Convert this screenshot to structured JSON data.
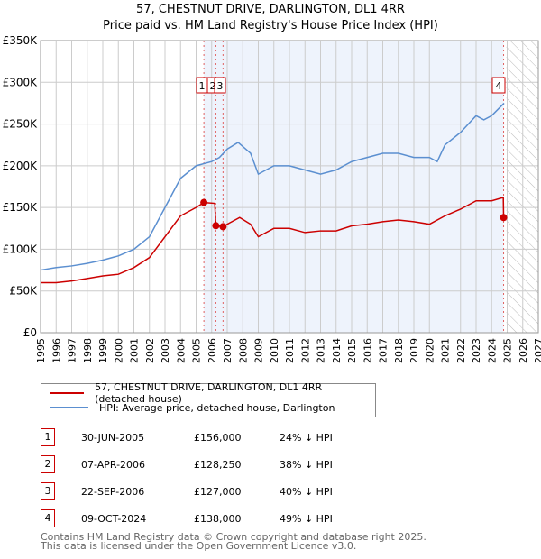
{
  "title": "57, CHESTNUT DRIVE, DARLINGTON, DL1 4RR",
  "subtitle": "Price paid vs. HM Land Registry's House Price Index (HPI)",
  "chart_data": {
    "type": "line",
    "xlim": [
      1995,
      2027
    ],
    "ylim": [
      0,
      350000
    ],
    "x_ticks": [
      "1995",
      "1996",
      "1997",
      "1998",
      "1999",
      "2000",
      "2001",
      "2002",
      "2003",
      "2004",
      "2005",
      "2006",
      "2007",
      "2008",
      "2009",
      "2010",
      "2011",
      "2012",
      "2013",
      "2014",
      "2015",
      "2016",
      "2017",
      "2018",
      "2019",
      "2020",
      "2021",
      "2022",
      "2023",
      "2024",
      "2025",
      "2026",
      "2027"
    ],
    "y_ticks": [
      {
        "v": 0,
        "label": "£0"
      },
      {
        "v": 50000,
        "label": "£50K"
      },
      {
        "v": 100000,
        "label": "£100K"
      },
      {
        "v": 150000,
        "label": "£150K"
      },
      {
        "v": 200000,
        "label": "£200K"
      },
      {
        "v": 250000,
        "label": "£250K"
      },
      {
        "v": 300000,
        "label": "£300K"
      },
      {
        "v": 350000,
        "label": "£350K"
      }
    ],
    "shaded_range": [
      2005.5,
      2024.77
    ],
    "forecast_from": 2024.95,
    "series": [
      {
        "name": "57, CHESTNUT DRIVE, DARLINGTON, DL1 4RR (detached house)",
        "color": "#cc0000",
        "x": [
          1995,
          1996,
          1997,
          1998,
          1999,
          2000,
          2001,
          2002,
          2003,
          2004,
          2005,
          2005.5,
          2006.2,
          2006.27,
          2006.73,
          2007,
          2007.8,
          2008.5,
          2009,
          2010,
          2011,
          2012,
          2013,
          2014,
          2015,
          2016,
          2017,
          2018,
          2019,
          2020,
          2021,
          2022,
          2023,
          2024,
          2024.75,
          2024.77
        ],
        "y": [
          60000,
          60000,
          62000,
          65000,
          68000,
          70000,
          78000,
          90000,
          115000,
          140000,
          150000,
          156000,
          155000,
          128250,
          127000,
          130000,
          138000,
          130000,
          115000,
          125000,
          125000,
          120000,
          122000,
          122000,
          128000,
          130000,
          133000,
          135000,
          133000,
          130000,
          140000,
          148000,
          158000,
          158000,
          162000,
          138000
        ]
      },
      {
        "name": "HPI: Average price, detached house, Darlington",
        "color": "#5b8fd0",
        "x": [
          1995,
          1996,
          1997,
          1998,
          1999,
          2000,
          2001,
          2002,
          2003,
          2004,
          2005,
          2006,
          2006.5,
          2007,
          2007.7,
          2008.5,
          2009,
          2010,
          2011,
          2012,
          2013,
          2014,
          2015,
          2016,
          2017,
          2018,
          2019,
          2020,
          2020.5,
          2021,
          2022,
          2023,
          2023.5,
          2024,
          2024.8
        ],
        "y": [
          75000,
          78000,
          80000,
          83000,
          87000,
          92000,
          100000,
          115000,
          150000,
          185000,
          200000,
          205000,
          210000,
          220000,
          228000,
          215000,
          190000,
          200000,
          200000,
          195000,
          190000,
          195000,
          205000,
          210000,
          215000,
          215000,
          210000,
          210000,
          205000,
          225000,
          240000,
          260000,
          255000,
          260000,
          275000
        ]
      }
    ],
    "sales": [
      {
        "id": "1",
        "x": 2005.5,
        "y": 156000
      },
      {
        "id": "2",
        "x": 2006.27,
        "y": 128250
      },
      {
        "id": "3",
        "x": 2006.73,
        "y": 127000
      },
      {
        "id": "4",
        "x": 2024.77,
        "y": 138000
      }
    ]
  },
  "legend": [
    "57, CHESTNUT DRIVE, DARLINGTON, DL1 4RR (detached house)",
    "HPI: Average price, detached house, Darlington"
  ],
  "table": [
    {
      "id": "1",
      "date": "30-JUN-2005",
      "price": "£156,000",
      "hpi": "24% ↓ HPI"
    },
    {
      "id": "2",
      "date": "07-APR-2006",
      "price": "£128,250",
      "hpi": "38% ↓ HPI"
    },
    {
      "id": "3",
      "date": "22-SEP-2006",
      "price": "£127,000",
      "hpi": "40% ↓ HPI"
    },
    {
      "id": "4",
      "date": "09-OCT-2024",
      "price": "£138,000",
      "hpi": "49% ↓ HPI"
    }
  ],
  "footer": [
    "Contains HM Land Registry data © Crown copyright and database right 2025.",
    "This data is licensed under the Open Government Licence v3.0."
  ]
}
